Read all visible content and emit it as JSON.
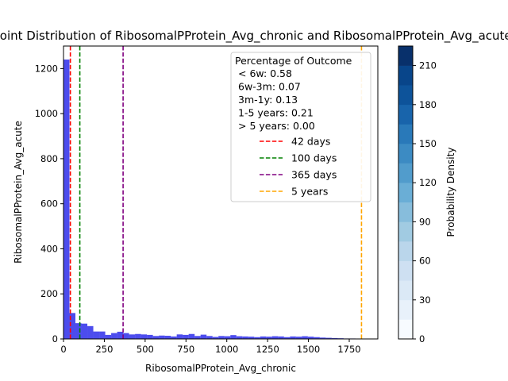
{
  "chart_data": [
    {
      "type": "bar",
      "title": "Joint Distribution of RibosomalPProtein_Avg_chronic and RibosomalPProtein_Avg_acute",
      "xlabel": "RibosomalPProtein_Avg_chronic",
      "ylabel": "RibosomalPProtein_Avg_acute",
      "xlim": [
        0,
        1925
      ],
      "ylim": [
        0,
        1300
      ],
      "xticks": [
        0,
        250,
        500,
        750,
        1000,
        1250,
        1500,
        1750
      ],
      "yticks": [
        0,
        200,
        400,
        600,
        800,
        1000,
        1200
      ],
      "bar_color": "#0000e6",
      "bin_width": 36.5,
      "values": [
        1240,
        115,
        70,
        68,
        57,
        33,
        33,
        18,
        26,
        32,
        26,
        20,
        22,
        20,
        18,
        13,
        15,
        14,
        11,
        20,
        18,
        22,
        13,
        19,
        13,
        9,
        13,
        12,
        17,
        12,
        11,
        10,
        8,
        11,
        10,
        12,
        11,
        8,
        11,
        10,
        12,
        10,
        8,
        6,
        5,
        4,
        3,
        2,
        2,
        1
      ],
      "vlines": [
        {
          "x": 42,
          "label": "42 days",
          "color": "#ff0000"
        },
        {
          "x": 100,
          "label": "100 days",
          "color": "#008000"
        },
        {
          "x": 365,
          "label": "365 days",
          "color": "#800080"
        },
        {
          "x": 1825,
          "label": "5 years",
          "color": "#ffa500"
        }
      ],
      "legend": {
        "placement": "top-right",
        "title": "Percentage of Outcome",
        "lines": [
          "< 6w: 0.58",
          "6w-3m: 0.07",
          "3m-1y: 0.13",
          "1-5 years: 0.21",
          "> 5 years: 0.00"
        ]
      }
    },
    {
      "type": "colorbar",
      "label": "Probability Density",
      "range": [
        0,
        225
      ],
      "ticks": [
        0,
        30,
        60,
        90,
        120,
        150,
        180,
        210
      ],
      "colors": [
        "#f7fbff",
        "#e8f1fa",
        "#dbe9f6",
        "#cee0f2",
        "#bad6eb",
        "#a1cbe2",
        "#87bddc",
        "#6aaed6",
        "#519ccc",
        "#3c8bc3",
        "#2979b9",
        "#1864ab",
        "#0d539a",
        "#08458a",
        "#08306b"
      ]
    }
  ]
}
